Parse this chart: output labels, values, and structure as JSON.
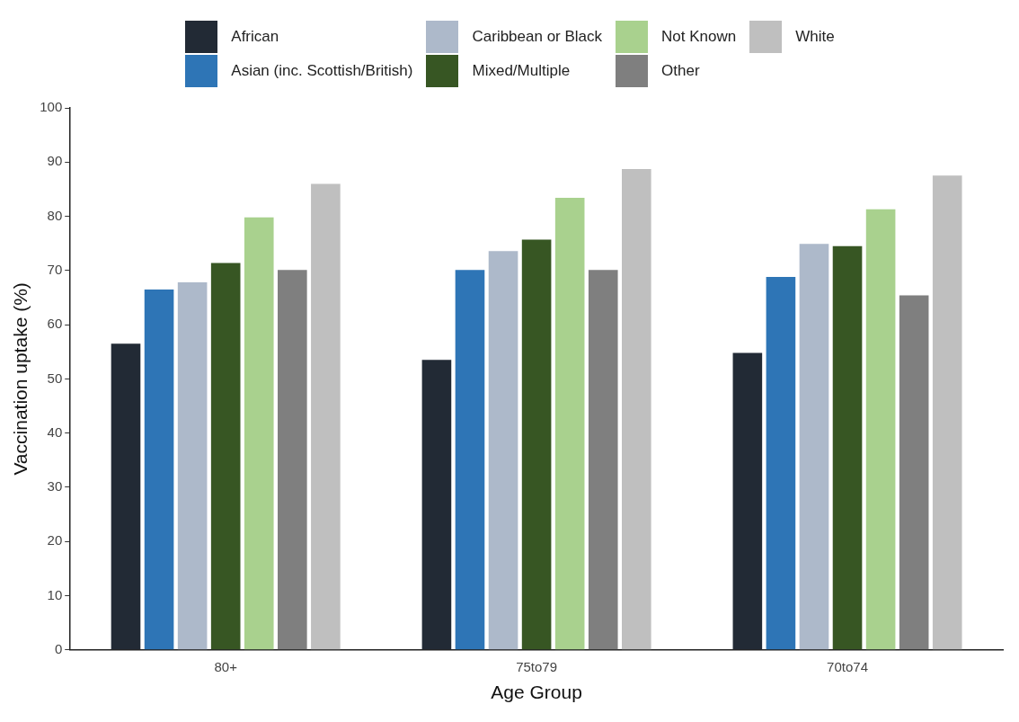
{
  "chart_data": {
    "type": "bar",
    "xlabel": "Age Group",
    "ylabel": "Vaccination uptake (%)",
    "categories": [
      "80+",
      "75to79",
      "70to74"
    ],
    "series": [
      {
        "name": "African",
        "color": "#222a35",
        "values": [
          56.5,
          53.5,
          54.8
        ]
      },
      {
        "name": "Asian (inc. Scottish/British)",
        "color": "#2e75b6",
        "values": [
          66.5,
          70.1,
          68.8
        ]
      },
      {
        "name": "Caribbean or Black",
        "color": "#adb9ca",
        "values": [
          67.8,
          73.6,
          74.9
        ]
      },
      {
        "name": "Mixed/Multiple",
        "color": "#375623",
        "values": [
          71.4,
          75.7,
          74.5
        ]
      },
      {
        "name": "Not Known",
        "color": "#a9d18e",
        "values": [
          79.8,
          83.4,
          81.3
        ]
      },
      {
        "name": "Other",
        "color": "#7f7f7f",
        "values": [
          70.1,
          70.1,
          65.4
        ]
      },
      {
        "name": "White",
        "color": "#bfbfbf",
        "values": [
          86.0,
          88.7,
          87.5
        ]
      }
    ],
    "ylim": [
      0,
      100
    ],
    "yticks": [
      0,
      10,
      20,
      30,
      40,
      50,
      60,
      70,
      80,
      90,
      100
    ],
    "grid": false,
    "legend": "top"
  }
}
